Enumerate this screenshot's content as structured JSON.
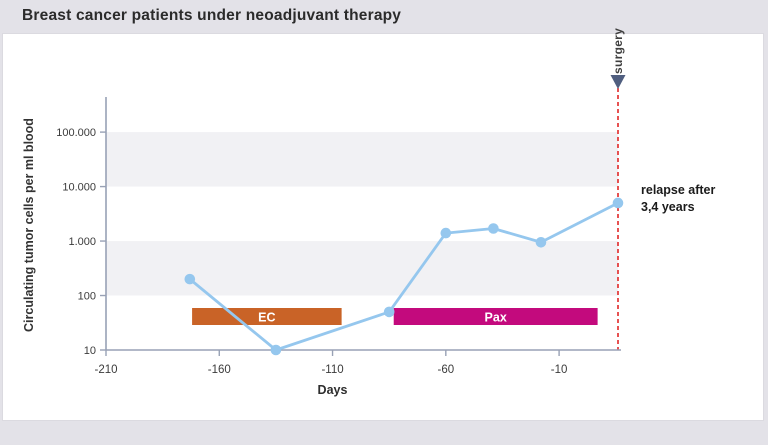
{
  "header": {
    "title": "Breast cancer patients under neoadjuvant therapy"
  },
  "chart_data": {
    "type": "line",
    "title": "Breast cancer patients under neoadjuvant therapy",
    "xlabel": "Days",
    "ylabel": "Circulating tumor cells per ml blood",
    "x_range": [
      -210,
      16
    ],
    "y_range": [
      10,
      441000
    ],
    "y_scale": "log",
    "x_ticks": [
      -210,
      -160,
      -110,
      -60,
      -10
    ],
    "y_ticks": [
      {
        "value": 100000,
        "label": "100.000"
      },
      {
        "value": 10000,
        "label": "10.000"
      },
      {
        "value": 1000,
        "label": "1.000"
      },
      {
        "value": 100,
        "label": "100"
      },
      {
        "value": 10,
        "label": "10"
      }
    ],
    "bands": [
      [
        10000,
        100000
      ],
      [
        100,
        1000
      ]
    ],
    "grid": "off",
    "legend": "none",
    "series": [
      {
        "name": "Circulating tumor cells per ml blood",
        "points": [
          {
            "day": -173,
            "value": 200
          },
          {
            "day": -135,
            "value": 10
          },
          {
            "day": -85,
            "value": 50
          },
          {
            "day": -60,
            "value": 1400
          },
          {
            "day": -39,
            "value": 1700
          },
          {
            "day": -18,
            "value": 950
          },
          {
            "day": 16,
            "value": 5000
          }
        ]
      }
    ],
    "treatments": [
      {
        "label": "EC",
        "start": -172,
        "end": -106,
        "color": "#c96327"
      },
      {
        "label": "Pax",
        "start": -83,
        "end": 7,
        "color": "#c30a7d"
      }
    ],
    "surgery": {
      "label": "surgery",
      "day": 16
    },
    "annotation": {
      "line1": "relapse after",
      "line2": "3,4 years"
    }
  },
  "colors": {
    "page_bg": "#e3e2e8",
    "panel_bg": "#ffffff",
    "panel_border": "#dbdae0",
    "band": "#f1f1f4",
    "axis": "#98a1b5",
    "tick_text": "#3b3b3b",
    "series": "#95c7ee",
    "surgery_line": "#e12727",
    "arrow": "#4f5e7f",
    "title_text": "#2b2b2b",
    "annotation_text": "#1b1b1b"
  }
}
